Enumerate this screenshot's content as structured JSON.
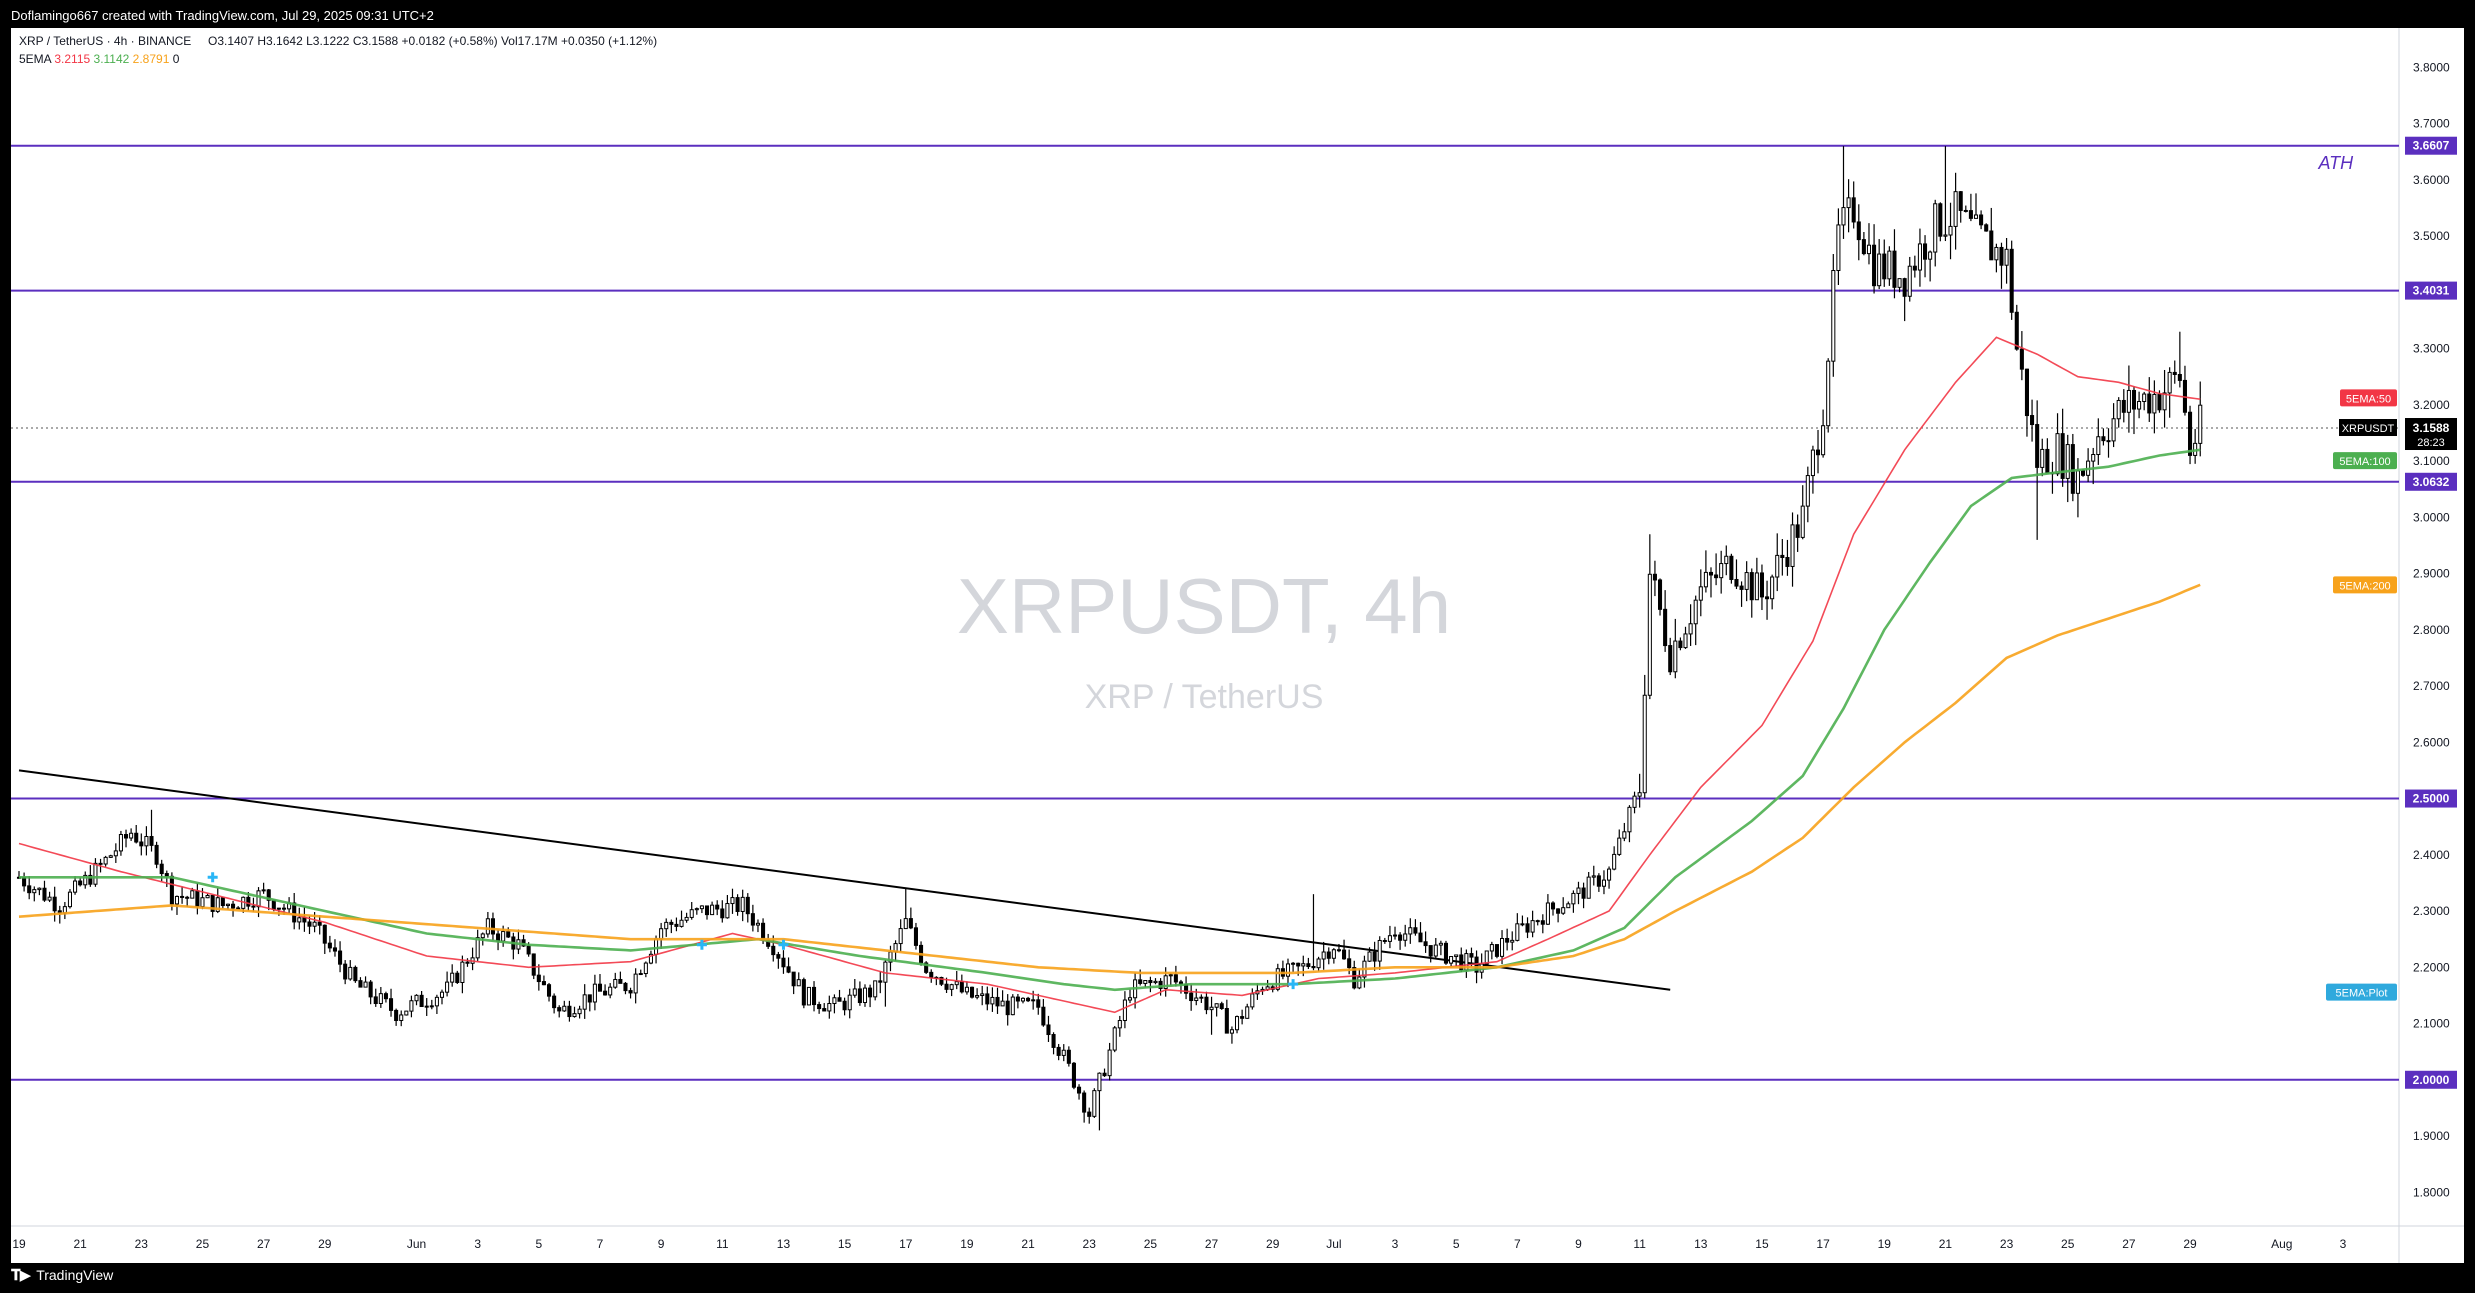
{
  "header": {
    "credit": "Doflamingo667 created with TradingView.com, Jul 29, 2025 09:31 UTC+2"
  },
  "legend": {
    "symbol": "XRP / TetherUS · 4h · BINANCE",
    "open": "O3.1407",
    "high": "H3.1642",
    "low": "L3.1222",
    "close": "C3.1588",
    "change": "+0.0182 (+0.58%)",
    "volume": "Vol17.17M",
    "vol_change": "+0.0350 (+1.12%)",
    "indicator": "5EMA",
    "ema50": "3.2115",
    "ema100": "3.1142",
    "ema200": "2.8791",
    "ema_extra": "0"
  },
  "watermark": {
    "title": "XRPUSDT, 4h",
    "subtitle": "XRP / TetherUS"
  },
  "footer": {
    "brand": "TradingView",
    "logo_icon": "tradingview-logo-icon"
  },
  "colors": {
    "ema50": "#f23645",
    "ema100": "#4caf50",
    "ema200": "#f7a21b",
    "level_line": "#5b2fbf",
    "trendline": "#000000",
    "price_tag": "#000000",
    "plot_tag": "#2fa9dd"
  },
  "chart_data": {
    "type": "candlestick",
    "symbol": "XRPUSDT",
    "timeframe": "4h",
    "ylim": [
      1.74,
      3.87
    ],
    "grid": false,
    "y_ticks": [
      "3.8000",
      "3.7000",
      "3.6000",
      "3.5000",
      "3.3000",
      "3.2000",
      "3.1000",
      "3.0000",
      "2.9000",
      "2.8000",
      "2.7000",
      "2.6000",
      "2.4000",
      "2.3000",
      "2.2000",
      "2.1000",
      "1.9000",
      "1.8000"
    ],
    "x_ticks": [
      {
        "label": "19",
        "idx": 0
      },
      {
        "label": "21",
        "idx": 12
      },
      {
        "label": "23",
        "idx": 24
      },
      {
        "label": "25",
        "idx": 36
      },
      {
        "label": "27",
        "idx": 48
      },
      {
        "label": "29",
        "idx": 60
      },
      {
        "label": "Jun",
        "idx": 78
      },
      {
        "label": "3",
        "idx": 90
      },
      {
        "label": "5",
        "idx": 102
      },
      {
        "label": "7",
        "idx": 114
      },
      {
        "label": "9",
        "idx": 126
      },
      {
        "label": "11",
        "idx": 138
      },
      {
        "label": "13",
        "idx": 150
      },
      {
        "label": "15",
        "idx": 162
      },
      {
        "label": "17",
        "idx": 174
      },
      {
        "label": "19",
        "idx": 186
      },
      {
        "label": "21",
        "idx": 198
      },
      {
        "label": "23",
        "idx": 210
      },
      {
        "label": "25",
        "idx": 222
      },
      {
        "label": "27",
        "idx": 234
      },
      {
        "label": "29",
        "idx": 246
      },
      {
        "label": "Jul",
        "idx": 258
      },
      {
        "label": "3",
        "idx": 270
      },
      {
        "label": "5",
        "idx": 282
      },
      {
        "label": "7",
        "idx": 294
      },
      {
        "label": "9",
        "idx": 306
      },
      {
        "label": "11",
        "idx": 318
      },
      {
        "label": "13",
        "idx": 330
      },
      {
        "label": "15",
        "idx": 342
      },
      {
        "label": "17",
        "idx": 354
      },
      {
        "label": "19",
        "idx": 366
      },
      {
        "label": "21",
        "idx": 378
      },
      {
        "label": "23",
        "idx": 390
      },
      {
        "label": "25",
        "idx": 402
      },
      {
        "label": "27",
        "idx": 414
      },
      {
        "label": "29",
        "idx": 426
      },
      {
        "label": "Aug",
        "idx": 444
      },
      {
        "label": "3",
        "idx": 456
      }
    ],
    "x_slots": 467,
    "closes_key": [
      [
        0,
        2.36
      ],
      [
        8,
        2.31
      ],
      [
        16,
        2.38
      ],
      [
        22,
        2.44
      ],
      [
        27,
        2.4
      ],
      [
        30,
        2.33
      ],
      [
        40,
        2.31
      ],
      [
        48,
        2.33
      ],
      [
        58,
        2.27
      ],
      [
        66,
        2.17
      ],
      [
        74,
        2.12
      ],
      [
        84,
        2.16
      ],
      [
        92,
        2.27
      ],
      [
        98,
        2.24
      ],
      [
        106,
        2.12
      ],
      [
        112,
        2.15
      ],
      [
        120,
        2.17
      ],
      [
        126,
        2.27
      ],
      [
        134,
        2.3
      ],
      [
        142,
        2.31
      ],
      [
        148,
        2.24
      ],
      [
        154,
        2.15
      ],
      [
        160,
        2.13
      ],
      [
        168,
        2.16
      ],
      [
        174,
        2.28
      ],
      [
        178,
        2.2
      ],
      [
        186,
        2.15
      ],
      [
        194,
        2.13
      ],
      [
        200,
        2.13
      ],
      [
        206,
        2.02
      ],
      [
        210,
        1.94
      ],
      [
        214,
        2.05
      ],
      [
        218,
        2.16
      ],
      [
        226,
        2.18
      ],
      [
        234,
        2.13
      ],
      [
        238,
        2.09
      ],
      [
        244,
        2.17
      ],
      [
        252,
        2.2
      ],
      [
        258,
        2.24
      ],
      [
        262,
        2.18
      ],
      [
        270,
        2.27
      ],
      [
        278,
        2.23
      ],
      [
        286,
        2.2
      ],
      [
        292,
        2.25
      ],
      [
        300,
        2.3
      ],
      [
        306,
        2.33
      ],
      [
        312,
        2.37
      ],
      [
        318,
        2.52
      ],
      [
        320,
        2.9
      ],
      [
        324,
        2.76
      ],
      [
        330,
        2.87
      ],
      [
        336,
        2.92
      ],
      [
        342,
        2.86
      ],
      [
        350,
        3.0
      ],
      [
        354,
        3.2
      ],
      [
        357,
        3.5
      ],
      [
        360,
        3.55
      ],
      [
        364,
        3.45
      ],
      [
        370,
        3.43
      ],
      [
        376,
        3.52
      ],
      [
        380,
        3.54
      ],
      [
        384,
        3.5
      ],
      [
        390,
        3.46
      ],
      [
        392,
        3.3
      ],
      [
        396,
        3.1
      ],
      [
        400,
        3.12
      ],
      [
        404,
        3.07
      ],
      [
        408,
        3.15
      ],
      [
        414,
        3.2
      ],
      [
        420,
        3.22
      ],
      [
        424,
        3.25
      ],
      [
        426,
        3.12
      ],
      [
        428,
        3.16
      ]
    ],
    "key_lows": [
      [
        170,
        2.13
      ],
      [
        212,
        1.91
      ],
      [
        234,
        2.08
      ],
      [
        396,
        2.96
      ],
      [
        404,
        3.0
      ]
    ],
    "key_highs": [
      [
        26,
        2.48
      ],
      [
        174,
        2.34
      ],
      [
        254,
        2.33
      ],
      [
        320,
        2.97
      ],
      [
        358,
        3.66
      ],
      [
        378,
        3.66
      ],
      [
        424,
        3.33
      ]
    ],
    "series": [
      {
        "name": "5EMA:50",
        "color": "#f23645",
        "values": [
          [
            0,
            2.42
          ],
          [
            20,
            2.37
          ],
          [
            60,
            2.28
          ],
          [
            80,
            2.22
          ],
          [
            100,
            2.2
          ],
          [
            120,
            2.21
          ],
          [
            140,
            2.26
          ],
          [
            150,
            2.24
          ],
          [
            170,
            2.19
          ],
          [
            190,
            2.17
          ],
          [
            205,
            2.14
          ],
          [
            215,
            2.12
          ],
          [
            225,
            2.16
          ],
          [
            240,
            2.15
          ],
          [
            255,
            2.18
          ],
          [
            270,
            2.19
          ],
          [
            290,
            2.21
          ],
          [
            300,
            2.25
          ],
          [
            312,
            2.3
          ],
          [
            320,
            2.4
          ],
          [
            330,
            2.52
          ],
          [
            342,
            2.63
          ],
          [
            352,
            2.78
          ],
          [
            360,
            2.97
          ],
          [
            370,
            3.12
          ],
          [
            380,
            3.24
          ],
          [
            388,
            3.32
          ],
          [
            396,
            3.29
          ],
          [
            404,
            3.25
          ],
          [
            412,
            3.24
          ],
          [
            420,
            3.22
          ],
          [
            428,
            3.21
          ]
        ]
      },
      {
        "name": "5EMA:100",
        "color": "#4caf50",
        "values": [
          [
            0,
            2.36
          ],
          [
            30,
            2.36
          ],
          [
            60,
            2.3
          ],
          [
            80,
            2.26
          ],
          [
            100,
            2.24
          ],
          [
            120,
            2.23
          ],
          [
            145,
            2.25
          ],
          [
            165,
            2.22
          ],
          [
            190,
            2.19
          ],
          [
            205,
            2.17
          ],
          [
            215,
            2.16
          ],
          [
            230,
            2.17
          ],
          [
            250,
            2.17
          ],
          [
            270,
            2.18
          ],
          [
            290,
            2.2
          ],
          [
            305,
            2.23
          ],
          [
            315,
            2.27
          ],
          [
            325,
            2.36
          ],
          [
            340,
            2.46
          ],
          [
            350,
            2.54
          ],
          [
            358,
            2.66
          ],
          [
            366,
            2.8
          ],
          [
            375,
            2.92
          ],
          [
            383,
            3.02
          ],
          [
            391,
            3.07
          ],
          [
            400,
            3.08
          ],
          [
            410,
            3.09
          ],
          [
            420,
            3.11
          ],
          [
            428,
            3.12
          ]
        ]
      },
      {
        "name": "5EMA:200",
        "color": "#f7a21b",
        "values": [
          [
            0,
            2.29
          ],
          [
            30,
            2.31
          ],
          [
            60,
            2.29
          ],
          [
            90,
            2.27
          ],
          [
            120,
            2.25
          ],
          [
            150,
            2.25
          ],
          [
            170,
            2.23
          ],
          [
            200,
            2.2
          ],
          [
            220,
            2.19
          ],
          [
            250,
            2.19
          ],
          [
            270,
            2.2
          ],
          [
            290,
            2.2
          ],
          [
            305,
            2.22
          ],
          [
            315,
            2.25
          ],
          [
            325,
            2.3
          ],
          [
            340,
            2.37
          ],
          [
            350,
            2.43
          ],
          [
            360,
            2.52
          ],
          [
            370,
            2.6
          ],
          [
            380,
            2.67
          ],
          [
            390,
            2.75
          ],
          [
            400,
            2.79
          ],
          [
            410,
            2.82
          ],
          [
            420,
            2.85
          ],
          [
            428,
            2.88
          ]
        ]
      }
    ],
    "marker_points": [
      [
        38,
        2.36
      ],
      [
        134,
        2.24
      ],
      [
        150,
        2.24
      ],
      [
        250,
        2.17
      ]
    ],
    "horizontal_levels": [
      {
        "value": 3.6607,
        "label": "3.6607"
      },
      {
        "value": 3.4031,
        "label": "3.4031"
      },
      {
        "value": 3.0632,
        "label": "3.0632"
      },
      {
        "value": 2.5,
        "label": "2.5000"
      },
      {
        "value": 2.0,
        "label": "2.0000"
      }
    ],
    "trendline": {
      "from": [
        0,
        2.55
      ],
      "to": [
        324,
        2.16
      ]
    },
    "annotations": [
      {
        "text": "ATH",
        "idx": 458,
        "value": 3.63
      }
    ],
    "last_price": {
      "symbol": "XRPUSDT",
      "value": "3.1588",
      "countdown": "28:23",
      "idx": 428
    },
    "series_tags": [
      {
        "text": "5EMA:50",
        "value": 3.2115,
        "color": "#f23645"
      },
      {
        "text": "5EMA:100",
        "value": 3.1,
        "color": "#4caf50"
      },
      {
        "text": "5EMA:200",
        "value": 2.8791,
        "color": "#f7a21b"
      },
      {
        "text": "5EMA:Plot",
        "value": 2.155,
        "color": "#2fa9dd"
      }
    ]
  }
}
